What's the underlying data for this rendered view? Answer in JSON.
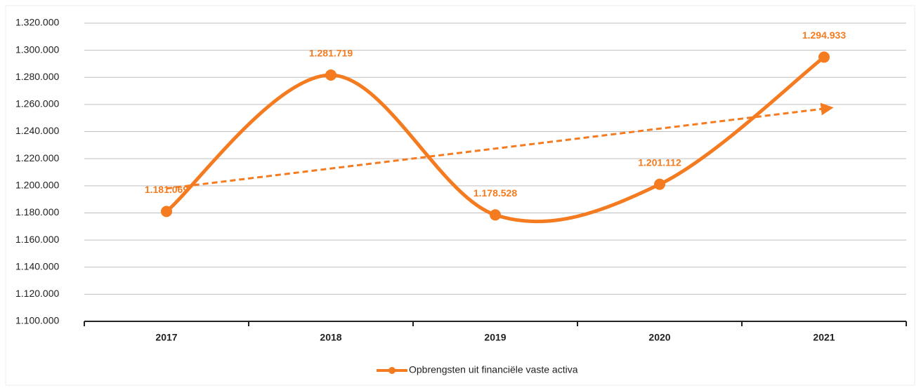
{
  "chart_data": {
    "type": "line",
    "categories": [
      "2017",
      "2018",
      "2019",
      "2020",
      "2021"
    ],
    "series": [
      {
        "name": "Opbrengsten uit financiële vaste activa",
        "color": "#f47b20",
        "values": [
          1181069,
          1281719,
          1178528,
          1201112,
          1294933
        ],
        "value_labels": [
          "1.181.069",
          "1.281.719",
          "1.178.528",
          "1.201.112",
          "1.294.933"
        ]
      }
    ],
    "ylim": [
      1100000,
      1320000
    ],
    "yticks": [
      {
        "value": 1100000,
        "label": "1.100.000"
      },
      {
        "value": 1120000,
        "label": "1.120.000"
      },
      {
        "value": 1140000,
        "label": "1.140.000"
      },
      {
        "value": 1160000,
        "label": "1.160.000"
      },
      {
        "value": 1180000,
        "label": "1.180.000"
      },
      {
        "value": 1200000,
        "label": "1.200.000"
      },
      {
        "value": 1220000,
        "label": "1.220.000"
      },
      {
        "value": 1240000,
        "label": "1.240.000"
      },
      {
        "value": 1260000,
        "label": "1.260.000"
      },
      {
        "value": 1280000,
        "label": "1.280.000"
      },
      {
        "value": 1300000,
        "label": "1.300.000"
      },
      {
        "value": 1320000,
        "label": "1.320.000"
      }
    ],
    "grid": true,
    "smooth": true,
    "trendline": "linear",
    "legend": "bottom"
  }
}
